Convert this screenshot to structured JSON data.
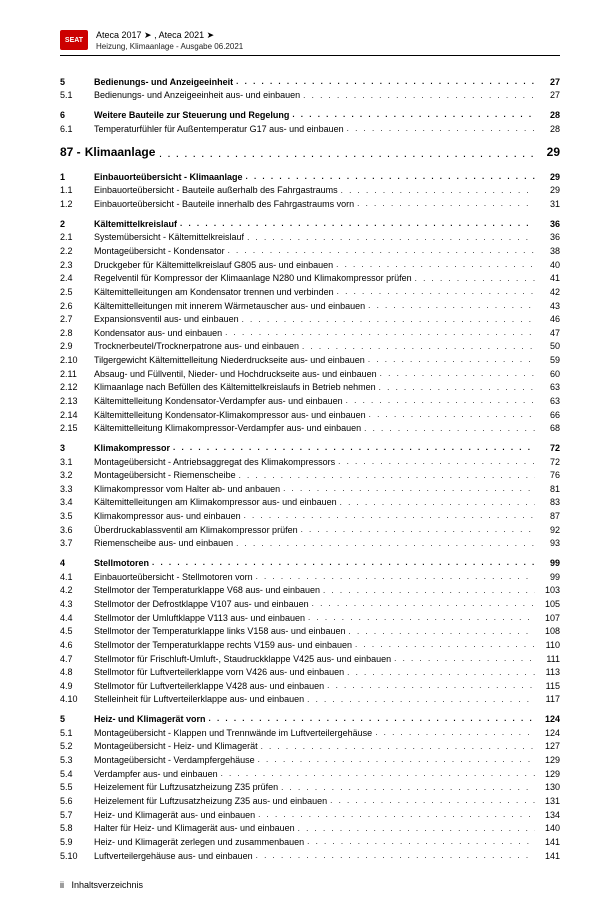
{
  "header": {
    "logo": "SEAT",
    "line1": "Ateca 2017 ➤ , Ateca 2021 ➤",
    "line2": "Heizung, Klimaanlage - Ausgabe 06.2021"
  },
  "footer": {
    "roman": "ii",
    "label": "Inhaltsverzeichnis"
  },
  "chapter": {
    "num": "87 -",
    "title": "Klimaanlage",
    "page": "29"
  },
  "rows": [
    {
      "n": "5",
      "t": "Bedienungs- und Anzeigeeinheit",
      "p": "27",
      "b": 1
    },
    {
      "n": "5.1",
      "t": "Bedienungs- und Anzeigeeinheit aus- und einbauen",
      "p": "27"
    },
    {
      "n": "6",
      "t": "Weitere Bauteile zur Steuerung und Regelung",
      "p": "28",
      "b": 1
    },
    {
      "n": "6.1",
      "t": "Temperaturfühler für Außentemperatur G17 aus- und einbauen",
      "p": "28"
    },
    {
      "chap": 1
    },
    {
      "n": "1",
      "t": "Einbauorteübersicht - Klimaanlage",
      "p": "29",
      "b": 1
    },
    {
      "n": "1.1",
      "t": "Einbauorteübersicht - Bauteile außerhalb des Fahrgastraums",
      "p": "29"
    },
    {
      "n": "1.2",
      "t": "Einbauorteübersicht - Bauteile innerhalb des Fahrgastraums vorn",
      "p": "31"
    },
    {
      "n": "2",
      "t": "Kältemittelkreislauf",
      "p": "36",
      "b": 1
    },
    {
      "n": "2.1",
      "t": "Systemübersicht - Kältemittelkreislauf",
      "p": "36"
    },
    {
      "n": "2.2",
      "t": "Montageübersicht - Kondensator",
      "p": "38"
    },
    {
      "n": "2.3",
      "t": "Druckgeber für Kältemittelkreislauf G805 aus- und einbauen",
      "p": "40"
    },
    {
      "n": "2.4",
      "t": "Regelventil für Kompressor der Klimaanlage N280 und Klimakompressor prüfen",
      "p": "41"
    },
    {
      "n": "2.5",
      "t": "Kältemittelleitungen am Kondensator trennen und verbinden",
      "p": "42"
    },
    {
      "n": "2.6",
      "t": "Kältemittelleitungen mit innerem Wärmetauscher aus- und einbauen",
      "p": "43"
    },
    {
      "n": "2.7",
      "t": "Expansionsventil aus- und einbauen",
      "p": "46"
    },
    {
      "n": "2.8",
      "t": "Kondensator aus- und einbauen",
      "p": "47"
    },
    {
      "n": "2.9",
      "t": "Trocknerbeutel/Trocknerpatrone aus- und einbauen",
      "p": "50"
    },
    {
      "n": "2.10",
      "t": "Tilgergewicht Kältemittelleitung Niederdruckseite aus- und einbauen",
      "p": "59"
    },
    {
      "n": "2.11",
      "t": "Absaug- und Füllventil, Nieder- und Hochdruckseite aus- und einbauen",
      "p": "60"
    },
    {
      "n": "2.12",
      "t": "Klimaanlage nach Befüllen des Kältemittelkreislaufs in Betrieb nehmen",
      "p": "63"
    },
    {
      "n": "2.13",
      "t": "Kältemittelleitung Kondensator-Verdampfer aus- und einbauen",
      "p": "63"
    },
    {
      "n": "2.14",
      "t": "Kältemittelleitung Kondensator-Klimakompressor aus- und einbauen",
      "p": "66"
    },
    {
      "n": "2.15",
      "t": "Kältemittelleitung Klimakompressor-Verdampfer aus- und einbauen",
      "p": "68"
    },
    {
      "n": "3",
      "t": "Klimakompressor",
      "p": "72",
      "b": 1
    },
    {
      "n": "3.1",
      "t": "Montageübersicht - Antriebsaggregat des Klimakompressors",
      "p": "72"
    },
    {
      "n": "3.2",
      "t": "Montageübersicht - Riemenscheibe",
      "p": "76"
    },
    {
      "n": "3.3",
      "t": "Klimakompressor vom Halter ab- und anbauen",
      "p": "81"
    },
    {
      "n": "3.4",
      "t": "Kältemittelleitungen am Klimakompressor aus- und einbauen",
      "p": "83"
    },
    {
      "n": "3.5",
      "t": "Klimakompressor aus- und einbauen",
      "p": "87"
    },
    {
      "n": "3.6",
      "t": "Überdruckablassventil am Klimakompressor prüfen",
      "p": "92"
    },
    {
      "n": "3.7",
      "t": "Riemenscheibe aus- und einbauen",
      "p": "93"
    },
    {
      "n": "4",
      "t": "Stellmotoren",
      "p": "99",
      "b": 1
    },
    {
      "n": "4.1",
      "t": "Einbauorteübersicht - Stellmotoren vorn",
      "p": "99"
    },
    {
      "n": "4.2",
      "t": "Stellmotor der Temperaturklappe V68 aus- und einbauen",
      "p": "103"
    },
    {
      "n": "4.3",
      "t": "Stellmotor der Defrostklappe V107 aus- und einbauen",
      "p": "105"
    },
    {
      "n": "4.4",
      "t": "Stellmotor der Umluftklappe V113 aus- und einbauen",
      "p": "107"
    },
    {
      "n": "4.5",
      "t": "Stellmotor der Temperaturklappe links V158 aus- und einbauen",
      "p": "108"
    },
    {
      "n": "4.6",
      "t": "Stellmotor der Temperaturklappe rechts V159 aus- und einbauen",
      "p": "110"
    },
    {
      "n": "4.7",
      "t": "Stellmotor für Frischluft-Umluft-, Staudruckklappe V425 aus- und einbauen",
      "p": "111"
    },
    {
      "n": "4.8",
      "t": "Stellmotor für Luftverteilerklappe vorn V426 aus- und einbauen",
      "p": "113"
    },
    {
      "n": "4.9",
      "t": "Stellmotor für Luftverteilerklappe V428 aus- und einbauen",
      "p": "115"
    },
    {
      "n": "4.10",
      "t": "Stelleinheit für Luftverteilerklappe aus- und einbauen",
      "p": "117"
    },
    {
      "n": "5",
      "t": "Heiz- und Klimagerät vorn",
      "p": "124",
      "b": 1
    },
    {
      "n": "5.1",
      "t": "Montageübersicht - Klappen und Trennwände im Luftverteilergehäuse",
      "p": "124"
    },
    {
      "n": "5.2",
      "t": "Montageübersicht - Heiz- und Klimagerät",
      "p": "127"
    },
    {
      "n": "5.3",
      "t": "Montageübersicht - Verdampfergehäuse",
      "p": "129"
    },
    {
      "n": "5.4",
      "t": "Verdampfer aus- und einbauen",
      "p": "129"
    },
    {
      "n": "5.5",
      "t": "Heizelement für Luftzusatzheizung Z35 prüfen",
      "p": "130"
    },
    {
      "n": "5.6",
      "t": "Heizelement für Luftzusatzheizung Z35 aus- und einbauen",
      "p": "131"
    },
    {
      "n": "5.7",
      "t": "Heiz- und Klimagerät aus- und einbauen",
      "p": "134"
    },
    {
      "n": "5.8",
      "t": "Halter für Heiz- und Klimagerät aus- und einbauen",
      "p": "140"
    },
    {
      "n": "5.9",
      "t": "Heiz- und Klimagerät zerlegen und zusammenbauen",
      "p": "141"
    },
    {
      "n": "5.10",
      "t": "Luftverteilergehäuse aus- und einbauen",
      "p": "141"
    }
  ]
}
